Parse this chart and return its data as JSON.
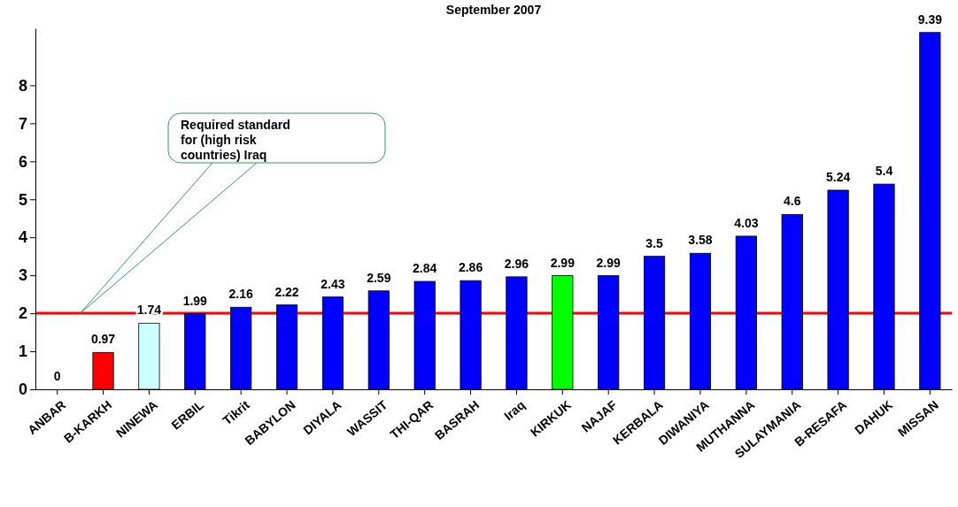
{
  "chart_data": {
    "type": "bar",
    "title": "September 2007",
    "categories": [
      "ANBAR",
      "B-KARKH",
      "NINEWA",
      "ERBIL",
      "Tikrit",
      "BABYLON",
      "DIYALA",
      "WASSIT",
      "THI-QAR",
      "BASRAH",
      "Iraq",
      "KIRKUK",
      "NAJAF",
      "KERBALA",
      "DIWANIYA",
      "MUTHANNA",
      "SULAYMANIA",
      "B-RESAFA",
      "DAHUK",
      "MISSAN"
    ],
    "values": [
      0,
      0.97,
      1.74,
      1.99,
      2.16,
      2.22,
      2.43,
      2.59,
      2.84,
      2.86,
      2.96,
      2.99,
      2.99,
      3.5,
      3.58,
      4.03,
      4.6,
      5.24,
      5.4,
      9.39
    ],
    "colors": [
      "#0000ff",
      "#ff0000",
      "#ccffff",
      "#0000ff",
      "#0000ff",
      "#0000ff",
      "#0000ff",
      "#0000ff",
      "#0000ff",
      "#0000ff",
      "#0000ff",
      "#00ff00",
      "#0000ff",
      "#0000ff",
      "#0000ff",
      "#0000ff",
      "#0000ff",
      "#0000ff",
      "#0000ff",
      "#0000ff"
    ],
    "ylim": [
      0,
      9.5
    ],
    "yticks": [
      0,
      1,
      2,
      3,
      4,
      5,
      6,
      7,
      8
    ],
    "data_labels": true,
    "annotations": [
      "Required standard for (high risk countries) Iraq"
    ],
    "ref_lines": [
      {
        "axis": "y",
        "value": 2,
        "color": "#ff0000"
      }
    ]
  }
}
